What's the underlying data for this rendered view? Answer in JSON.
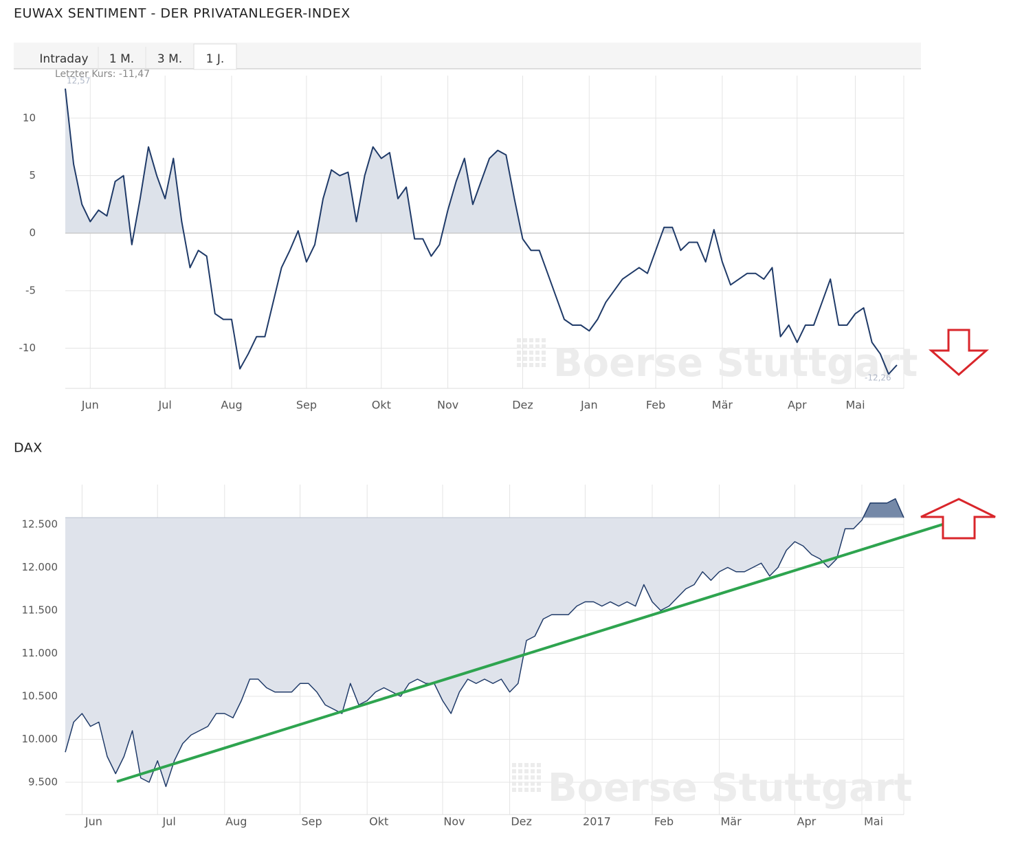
{
  "tabs": [
    "Intraday",
    "1 M.",
    "3 M.",
    "1 J."
  ],
  "chart_data": [
    {
      "type": "area",
      "title": "EUWAX SENTIMENT - DER PRIVATANLEGER-INDEX",
      "watermark": "Boerse Stuttgart",
      "annotations": [
        "Letzter Kurs: -11,47",
        "12,57",
        "-12,26"
      ],
      "color": "#1f3a68",
      "fill_above": "#dde2ea",
      "grid": true,
      "ylim": [
        -13.5,
        13.7
      ],
      "yticks": [
        10,
        5,
        0,
        -5,
        -10
      ],
      "categories": [
        null,
        null,
        null,
        "Jun",
        null,
        null,
        null,
        null,
        null,
        null,
        null,
        null,
        "Jul",
        null,
        null,
        null,
        null,
        null,
        null,
        null,
        "Aug",
        null,
        null,
        null,
        null,
        null,
        null,
        null,
        null,
        "Sep",
        null,
        null,
        null,
        null,
        null,
        null,
        null,
        null,
        "Okt",
        null,
        null,
        null,
        null,
        null,
        null,
        null,
        "Nov",
        null,
        null,
        null,
        null,
        null,
        null,
        null,
        null,
        "Dez",
        null,
        null,
        null,
        null,
        null,
        null,
        null,
        "Jan",
        null,
        null,
        null,
        null,
        null,
        null,
        null,
        "Feb",
        null,
        null,
        null,
        null,
        null,
        null,
        null,
        "Mär",
        null,
        null,
        null,
        null,
        null,
        null,
        null,
        null,
        "Apr",
        null,
        null,
        null,
        null,
        null,
        null,
        "Mai",
        null,
        null,
        null,
        null,
        null
      ],
      "values": [
        12.57,
        6,
        2.5,
        1,
        2,
        1.5,
        4.5,
        5,
        -1,
        3,
        7.5,
        5,
        3,
        6.5,
        1,
        -3,
        -1.5,
        -2,
        -7,
        -7.5,
        -7.5,
        -11.8,
        -10.5,
        -9,
        -9,
        -6,
        -3,
        -1.5,
        0.2,
        -2.5,
        -1,
        3,
        5.5,
        5,
        5.3,
        1,
        5,
        7.5,
        6.5,
        7,
        3,
        4,
        -0.5,
        -0.5,
        -2,
        -1,
        2,
        4.5,
        6.5,
        2.5,
        4.5,
        6.5,
        7.2,
        6.8,
        3,
        -0.5,
        -1.5,
        -1.5,
        -3.5,
        -5.5,
        -7.5,
        -8,
        -8,
        -8.5,
        -7.5,
        -6,
        -5,
        -4,
        -3.5,
        -3,
        -3.5,
        -1.5,
        0.5,
        0.5,
        -1.5,
        -0.8,
        -0.8,
        -2.5,
        0.3,
        -2.5,
        -4.5,
        -4,
        -3.5,
        -3.5,
        -4,
        -3,
        -9,
        -8,
        -9.5,
        -8,
        -8,
        -6,
        -4,
        -8,
        -8,
        -7,
        -6.5,
        -9.5,
        -10.5,
        -12.26,
        -11.47
      ]
    },
    {
      "type": "area",
      "title": "DAX",
      "watermark": "Boerse Stuttgart",
      "color": "#1f3a68",
      "fill_above": "#7589a8",
      "fill_below": "#dfe3eb",
      "area_baseline": "last",
      "grid": true,
      "ylim": [
        9124,
        12964
      ],
      "yticks": [
        {
          "value": 9500,
          "label": "9.500"
        },
        {
          "value": 10000,
          "label": "10.000"
        },
        {
          "value": 10500,
          "label": "10.500"
        },
        {
          "value": 11000,
          "label": "11.000"
        },
        {
          "value": 11500,
          "label": "11.500"
        },
        {
          "value": 12000,
          "label": "12.000"
        },
        {
          "value": 12500,
          "label": "12.500"
        }
      ],
      "categories": [
        null,
        null,
        "Jun",
        null,
        null,
        null,
        null,
        null,
        null,
        null,
        null,
        "Jul",
        null,
        null,
        null,
        null,
        null,
        null,
        null,
        "Aug",
        null,
        null,
        null,
        null,
        null,
        null,
        null,
        null,
        "Sep",
        null,
        null,
        null,
        null,
        null,
        null,
        null,
        "Okt",
        null,
        null,
        null,
        null,
        null,
        null,
        null,
        null,
        "Nov",
        null,
        null,
        null,
        null,
        null,
        null,
        null,
        "Dez",
        null,
        null,
        null,
        null,
        null,
        null,
        null,
        null,
        "2017",
        null,
        null,
        null,
        null,
        null,
        null,
        null,
        "Feb",
        null,
        null,
        null,
        null,
        null,
        null,
        null,
        "Mär",
        null,
        null,
        null,
        null,
        null,
        null,
        null,
        null,
        "Apr",
        null,
        null,
        null,
        null,
        null,
        null,
        null,
        "Mai",
        null,
        null,
        null,
        null,
        null
      ],
      "values": [
        9850,
        10200,
        10300,
        10150,
        10200,
        9800,
        9600,
        9800,
        10100,
        9550,
        9500,
        9750,
        9450,
        9750,
        9950,
        10050,
        10100,
        10150,
        10300,
        10300,
        10250,
        10450,
        10700,
        10700,
        10600,
        10550,
        10550,
        10550,
        10650,
        10650,
        10550,
        10400,
        10350,
        10300,
        10650,
        10400,
        10450,
        10550,
        10600,
        10550,
        10500,
        10650,
        10700,
        10650,
        10650,
        10450,
        10300,
        10550,
        10700,
        10650,
        10700,
        10650,
        10700,
        10550,
        10650,
        11150,
        11200,
        11400,
        11450,
        11450,
        11450,
        11550,
        11600,
        11600,
        11550,
        11600,
        11550,
        11600,
        11550,
        11800,
        11600,
        11500,
        11550,
        11650,
        11750,
        11800,
        11950,
        11850,
        11950,
        12000,
        11950,
        11950,
        12000,
        12050,
        11900,
        12000,
        12200,
        12300,
        12250,
        12150,
        12100,
        12000,
        12100,
        12450,
        12450,
        12550,
        12750,
        12750,
        12750,
        12800,
        12580
      ]
    }
  ]
}
